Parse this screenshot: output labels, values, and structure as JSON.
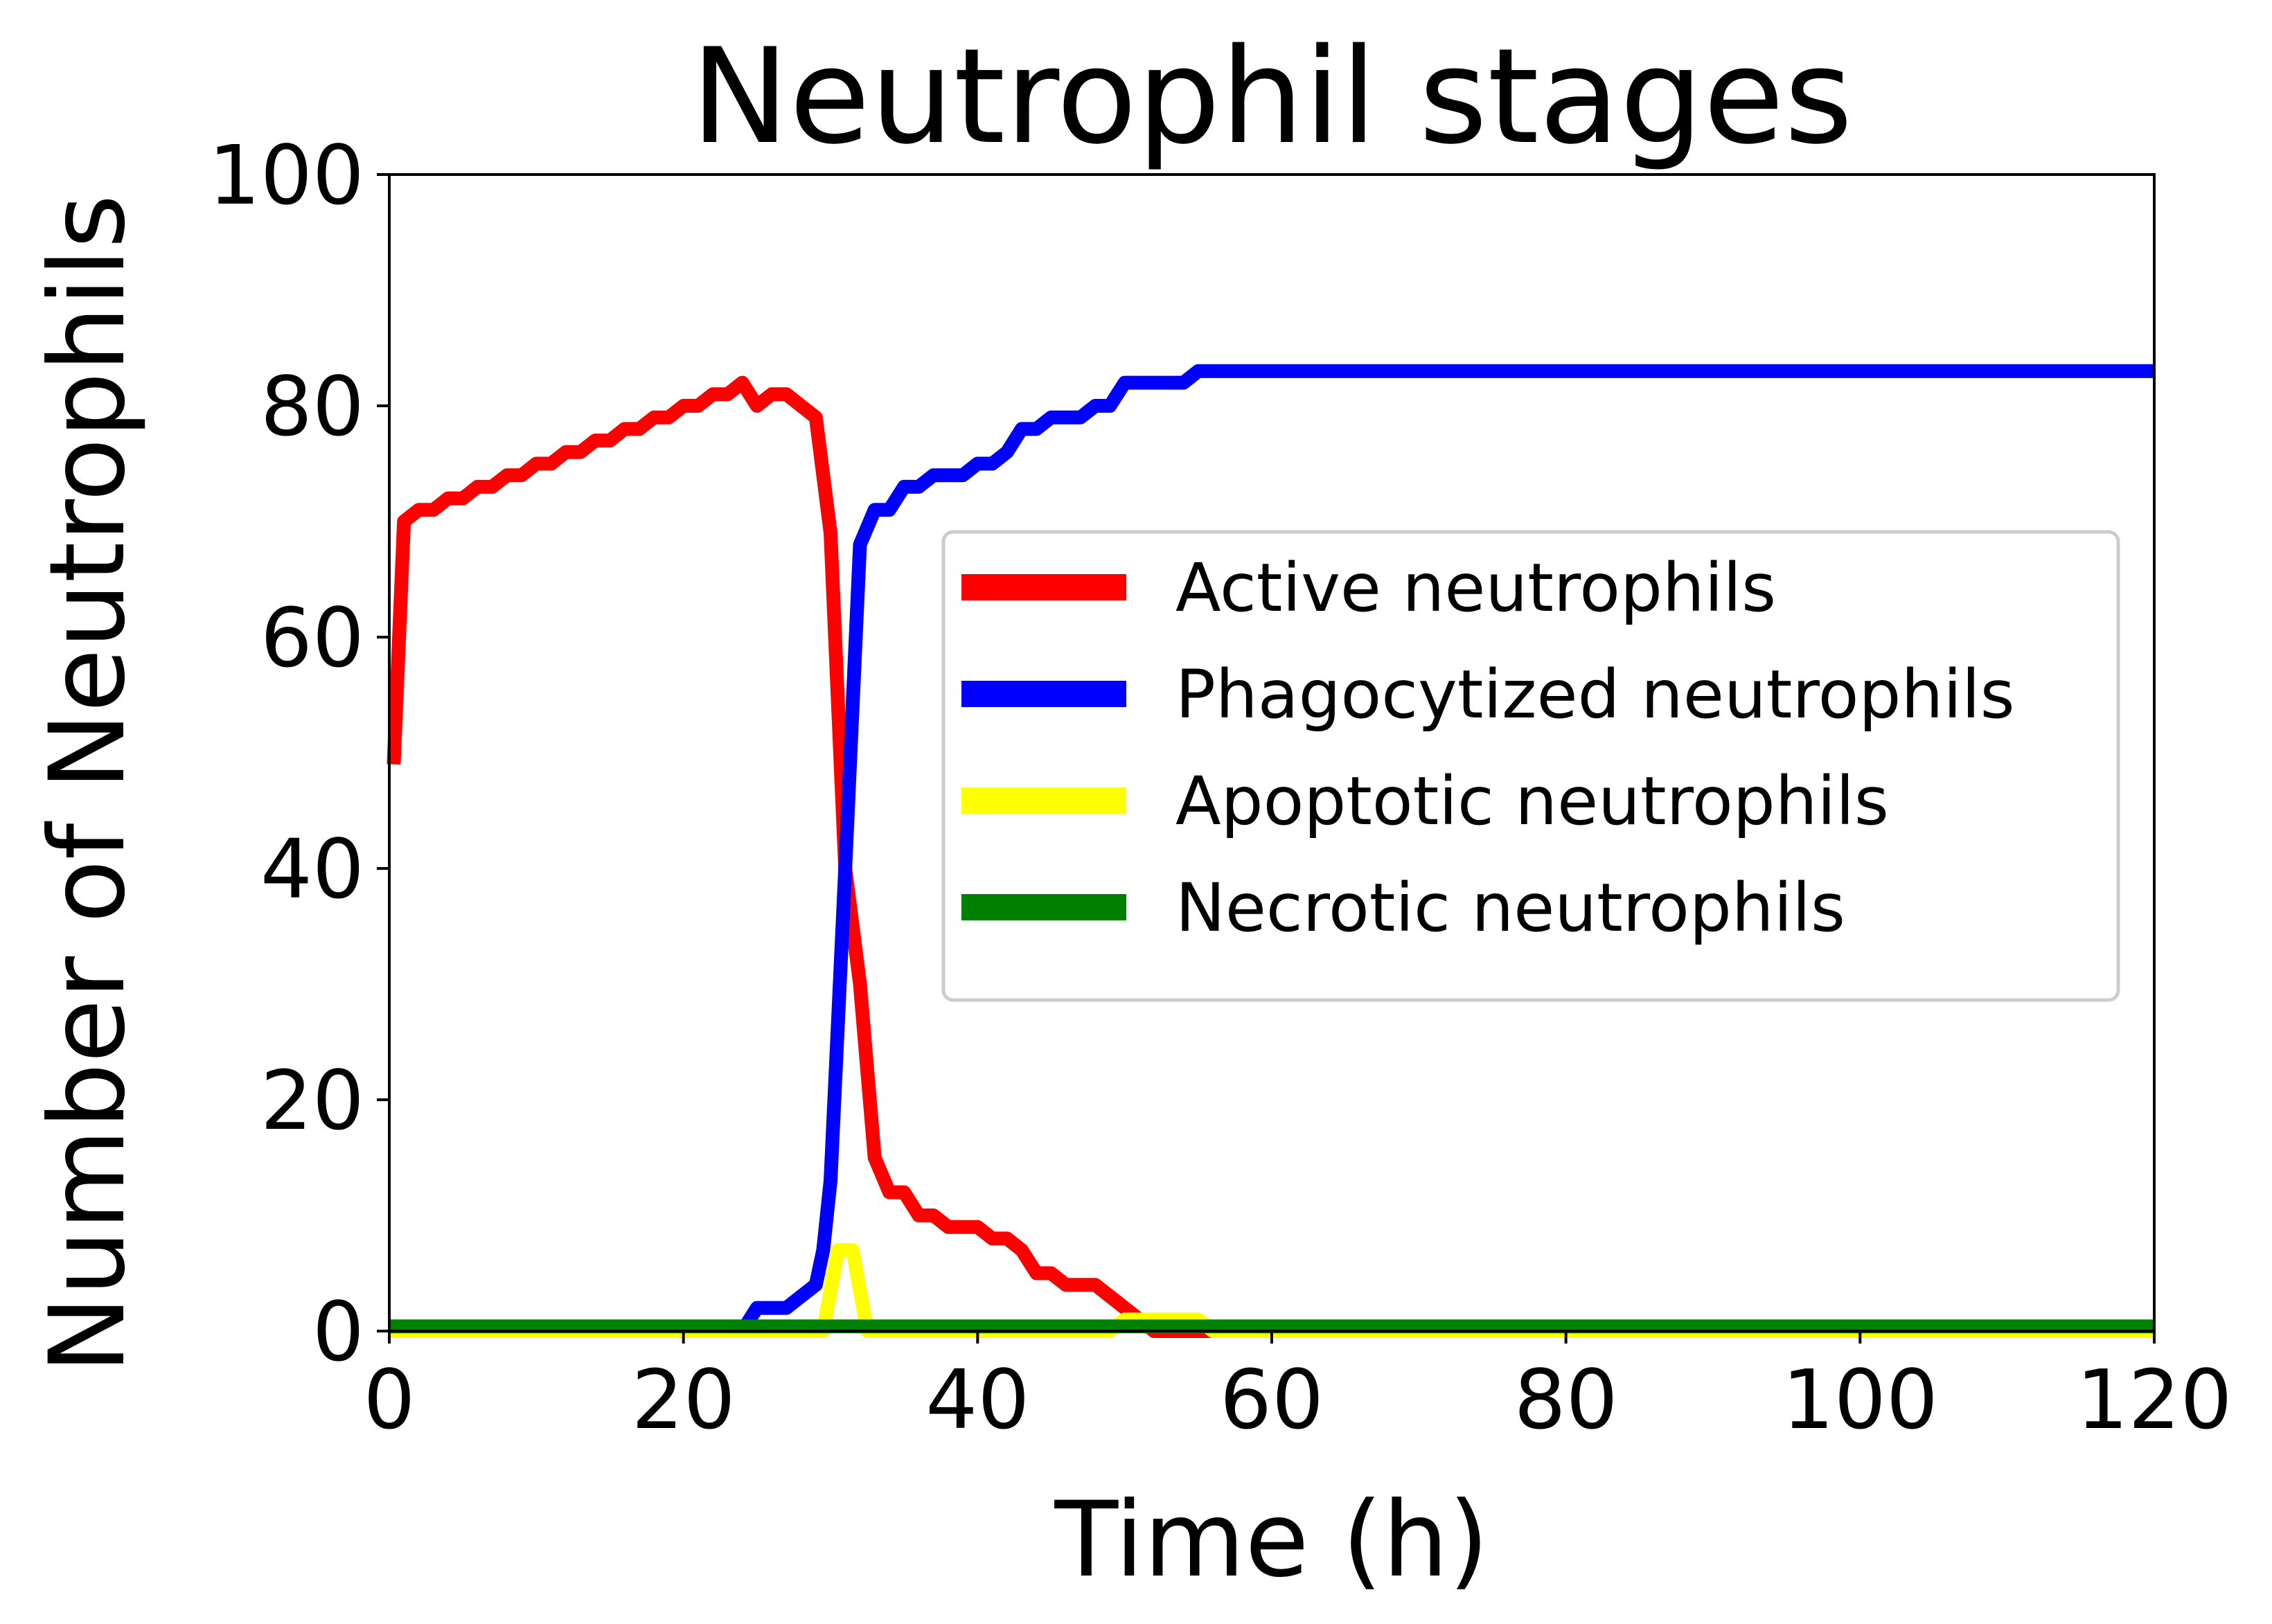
{
  "chart_data": {
    "type": "line",
    "title": "Neutrophil stages",
    "xlabel": "Time (h)",
    "ylabel": "Number of Neutrophils",
    "xlim": [
      0,
      120
    ],
    "ylim": [
      0,
      100
    ],
    "xticks": [
      0,
      20,
      40,
      60,
      80,
      100,
      120
    ],
    "yticks": [
      0,
      20,
      40,
      60,
      80,
      100
    ],
    "grid": false,
    "legend_position": "center-right",
    "series": [
      {
        "name": "Active neutrophils",
        "color": "#ff0000",
        "points": [
          [
            0.3,
            49
          ],
          [
            1,
            70
          ],
          [
            2,
            71
          ],
          [
            3,
            71
          ],
          [
            4,
            72
          ],
          [
            5,
            72
          ],
          [
            6,
            73
          ],
          [
            7,
            73
          ],
          [
            8,
            74
          ],
          [
            9,
            74
          ],
          [
            10,
            75
          ],
          [
            11,
            75
          ],
          [
            12,
            76
          ],
          [
            13,
            76
          ],
          [
            14,
            77
          ],
          [
            15,
            77
          ],
          [
            16,
            78
          ],
          [
            17,
            78
          ],
          [
            18,
            79
          ],
          [
            19,
            79
          ],
          [
            20,
            80
          ],
          [
            21,
            80
          ],
          [
            22,
            81
          ],
          [
            23,
            81
          ],
          [
            24,
            82
          ],
          [
            25,
            80
          ],
          [
            26,
            81
          ],
          [
            27,
            81
          ],
          [
            28,
            80
          ],
          [
            29,
            79
          ],
          [
            30,
            69
          ],
          [
            31,
            40
          ],
          [
            32,
            30
          ],
          [
            33,
            15
          ],
          [
            34,
            12
          ],
          [
            35,
            12
          ],
          [
            36,
            10
          ],
          [
            37,
            10
          ],
          [
            38,
            9
          ],
          [
            39,
            9
          ],
          [
            40,
            9
          ],
          [
            41,
            8
          ],
          [
            42,
            8
          ],
          [
            43,
            7
          ],
          [
            44,
            5
          ],
          [
            45,
            5
          ],
          [
            46,
            4
          ],
          [
            47,
            4
          ],
          [
            48,
            4
          ],
          [
            49,
            3
          ],
          [
            50,
            2
          ],
          [
            51,
            1
          ],
          [
            52,
            0
          ],
          [
            120,
            0
          ]
        ]
      },
      {
        "name": "Phagocytized neutrophils",
        "color": "#0000ff",
        "points": [
          [
            0,
            0
          ],
          [
            24,
            0
          ],
          [
            25,
            2
          ],
          [
            26,
            2
          ],
          [
            27,
            2
          ],
          [
            28,
            3
          ],
          [
            29,
            4
          ],
          [
            29.5,
            7
          ],
          [
            30,
            13
          ],
          [
            31,
            40
          ],
          [
            32,
            68
          ],
          [
            33,
            71
          ],
          [
            34,
            71
          ],
          [
            35,
            73
          ],
          [
            36,
            73
          ],
          [
            37,
            74
          ],
          [
            38,
            74
          ],
          [
            39,
            74
          ],
          [
            40,
            75
          ],
          [
            41,
            75
          ],
          [
            42,
            76
          ],
          [
            43,
            78
          ],
          [
            44,
            78
          ],
          [
            45,
            79
          ],
          [
            46,
            79
          ],
          [
            47,
            79
          ],
          [
            48,
            80
          ],
          [
            49,
            80
          ],
          [
            50,
            82
          ],
          [
            51,
            82
          ],
          [
            52,
            82
          ],
          [
            53,
            82
          ],
          [
            54,
            82
          ],
          [
            55,
            83
          ],
          [
            120,
            83
          ]
        ]
      },
      {
        "name": "Apoptotic neutrophils",
        "color": "#ffff00",
        "points": [
          [
            0,
            0
          ],
          [
            29.5,
            0
          ],
          [
            30.5,
            7
          ],
          [
            31.5,
            7
          ],
          [
            32.5,
            0
          ],
          [
            49,
            0
          ],
          [
            50,
            1
          ],
          [
            55,
            1
          ],
          [
            56,
            0
          ],
          [
            120,
            0
          ]
        ]
      },
      {
        "name": "Necrotic neutrophils",
        "color": "#008000",
        "points": [
          [
            0,
            0.4
          ],
          [
            120,
            0.4
          ]
        ]
      }
    ]
  }
}
